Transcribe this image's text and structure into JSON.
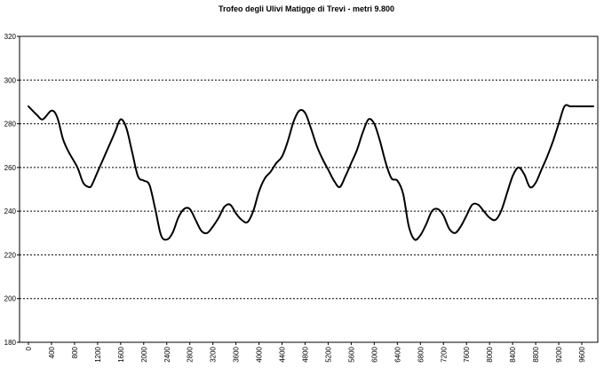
{
  "chart_data": {
    "type": "line",
    "title": "Trofeo degli Ulivi Matigge di Trevi - metri 9.800",
    "xlabel": "",
    "ylabel": "",
    "ylim": [
      180,
      320
    ],
    "xlim": [
      0,
      9800
    ],
    "yticks": [
      180,
      200,
      220,
      240,
      260,
      280,
      300,
      320
    ],
    "xticks": [
      0,
      400,
      800,
      1200,
      1600,
      2000,
      2400,
      2800,
      3200,
      3600,
      4000,
      4400,
      4800,
      5200,
      5600,
      6000,
      6400,
      6800,
      7200,
      7600,
      8000,
      8400,
      8800,
      9200,
      9600
    ],
    "grid": "horizontal-dashed",
    "legend": "none",
    "line_color": "#000000",
    "series": [
      {
        "x": [
          0,
          150,
          250,
          400,
          500,
          600,
          700,
          850,
          950,
          1050,
          1100,
          1200,
          1300,
          1400,
          1500,
          1600,
          1700,
          1800,
          1900,
          2000,
          2100,
          2200,
          2300,
          2400,
          2500,
          2600,
          2700,
          2800,
          2900,
          3000,
          3100,
          3200,
          3300,
          3400,
          3500,
          3600,
          3700,
          3800,
          3900,
          4000,
          4100,
          4200,
          4300,
          4400,
          4500,
          4600,
          4700,
          4800,
          4900,
          5000,
          5100,
          5200,
          5300,
          5400,
          5500,
          5600,
          5700,
          5800,
          5900,
          6000,
          6100,
          6200,
          6300,
          6400,
          6500,
          6600,
          6700,
          6800,
          6900,
          7000,
          7100,
          7200,
          7300,
          7400,
          7500,
          7600,
          7700,
          7800,
          7900,
          8000,
          8100,
          8200,
          8300,
          8400,
          8500,
          8600,
          8700,
          8800,
          8900,
          9000,
          9100,
          9200,
          9300,
          9400,
          9500,
          9600,
          9700,
          9800
        ],
        "values": [
          288,
          284,
          282,
          286,
          283,
          273,
          267,
          260,
          253,
          251,
          252,
          258,
          264,
          270,
          276,
          282,
          278,
          267,
          256,
          254,
          252,
          241,
          229,
          227,
          230,
          237,
          241,
          241,
          236,
          231,
          230,
          233,
          237,
          242,
          243,
          239,
          236,
          235,
          240,
          249,
          255,
          258,
          262,
          265,
          272,
          281,
          286,
          285,
          278,
          270,
          264,
          259,
          254,
          251,
          256,
          262,
          268,
          276,
          282,
          280,
          272,
          262,
          255,
          254,
          248,
          233,
          227,
          229,
          234,
          240,
          241,
          238,
          232,
          230,
          233,
          238,
          243,
          243,
          240,
          237,
          236,
          240,
          248,
          256,
          260,
          257,
          251,
          253,
          259,
          265,
          272,
          280,
          288,
          288,
          288,
          288,
          288,
          288
        ]
      }
    ]
  }
}
